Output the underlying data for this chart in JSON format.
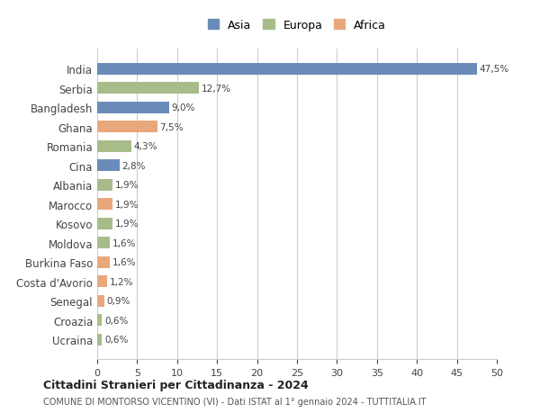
{
  "categories": [
    "India",
    "Serbia",
    "Bangladesh",
    "Ghana",
    "Romania",
    "Cina",
    "Albania",
    "Marocco",
    "Kosovo",
    "Moldova",
    "Burkina Faso",
    "Costa d'Avorio",
    "Senegal",
    "Croazia",
    "Ucraina"
  ],
  "values": [
    47.5,
    12.7,
    9.0,
    7.5,
    4.3,
    2.8,
    1.9,
    1.9,
    1.9,
    1.6,
    1.6,
    1.2,
    0.9,
    0.6,
    0.6
  ],
  "labels": [
    "47,5%",
    "12,7%",
    "9,0%",
    "7,5%",
    "4,3%",
    "2,8%",
    "1,9%",
    "1,9%",
    "1,9%",
    "1,6%",
    "1,6%",
    "1,2%",
    "0,9%",
    "0,6%",
    "0,6%"
  ],
  "continents": [
    "Asia",
    "Europa",
    "Asia",
    "Africa",
    "Europa",
    "Asia",
    "Europa",
    "Africa",
    "Europa",
    "Europa",
    "Africa",
    "Africa",
    "Africa",
    "Europa",
    "Europa"
  ],
  "colors": {
    "Asia": "#6b8cba",
    "Europa": "#a8bc8a",
    "Africa": "#e8a87c"
  },
  "legend_order": [
    "Asia",
    "Europa",
    "Africa"
  ],
  "xlim": [
    0,
    50
  ],
  "xticks": [
    0,
    5,
    10,
    15,
    20,
    25,
    30,
    35,
    40,
    45,
    50
  ],
  "title1": "Cittadini Stranieri per Cittadinanza - 2024",
  "title2": "COMUNE DI MONTORSO VICENTINO (VI) - Dati ISTAT al 1° gennaio 2024 - TUTTITALIA.IT",
  "background_color": "#ffffff",
  "grid_color": "#cccccc",
  "bar_height": 0.6
}
